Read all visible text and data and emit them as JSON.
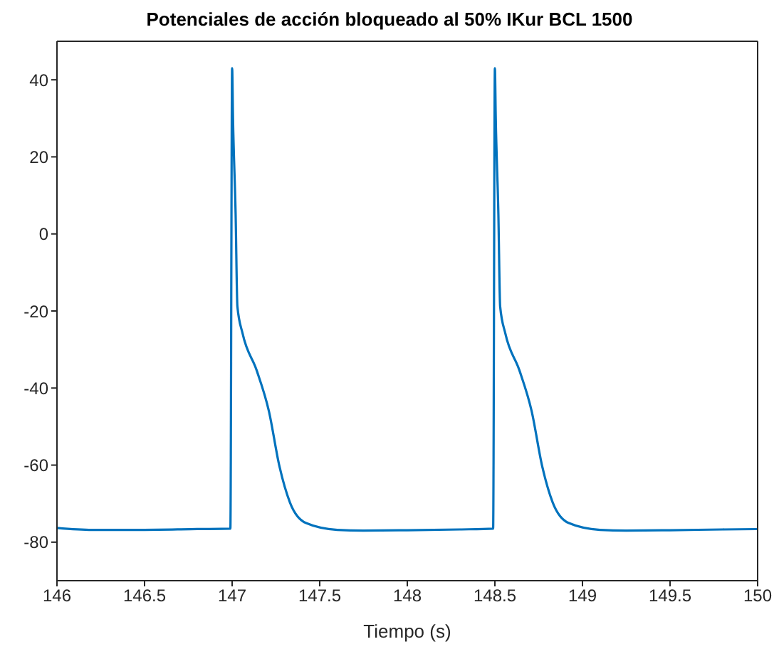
{
  "chart_data": {
    "type": "line",
    "title": "Potenciales de acción bloqueado al 50% IKur BCL 1500",
    "xlabel": "Tiempo (s)",
    "xlim": [
      146,
      150
    ],
    "xticks": [
      146,
      146.5,
      147,
      147.5,
      148,
      148.5,
      149,
      149.5,
      150
    ],
    "ylim": [
      -90,
      50
    ],
    "yticks": [
      -80,
      -60,
      -40,
      -20,
      0,
      20,
      40
    ],
    "grid": false,
    "marker": "none",
    "line_style": "solid",
    "series": [
      {
        "color": "#0072bd",
        "x": [
          146,
          146.2,
          146.5,
          146.8,
          146.99,
          147,
          147.005,
          147.02,
          147.03,
          147.06,
          147.14,
          147.21,
          147.27,
          147.33,
          147.42,
          147.6,
          147.75,
          148,
          148.3,
          148.49,
          148.5,
          148.505,
          148.52,
          148.53,
          148.56,
          148.64,
          148.71,
          148.77,
          148.83,
          148.92,
          149.1,
          149.25,
          149.5,
          149.8,
          150
        ],
        "values": [
          -76.3,
          -76.8,
          -76.8,
          -76.6,
          -76.5,
          43,
          30,
          5,
          -18.8,
          -25.9,
          -35.4,
          -46,
          -60.3,
          -69.7,
          -75,
          -76.8,
          -77,
          -76.9,
          -76.7,
          -76.5,
          43,
          30,
          5,
          -18.8,
          -25.9,
          -35.4,
          -46,
          -60.3,
          -69.7,
          -75,
          -76.8,
          -77,
          -76.9,
          -76.7,
          -76.6
        ]
      }
    ]
  }
}
